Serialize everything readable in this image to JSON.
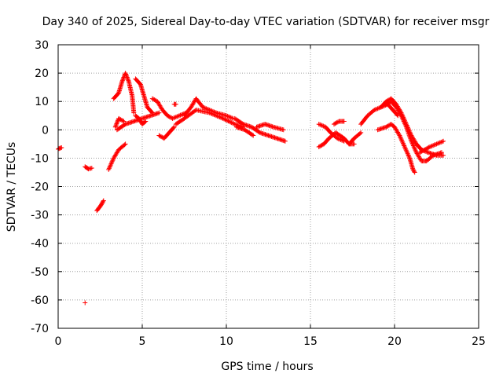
{
  "chart_data": {
    "type": "scatter",
    "title": "Day 340 of 2025, Sidereal Day-to-day VTEC variation (SDTVAR) for receiver msgr",
    "xlabel": "GPS time / hours",
    "ylabel": "SDTVAR / TECUs",
    "xlim": [
      0,
      25
    ],
    "ylim": [
      -70,
      30
    ],
    "xticks": [
      "0",
      "5",
      "10",
      "15",
      "20",
      "25"
    ],
    "yticks": [
      "30",
      "20",
      "10",
      "0",
      "-10",
      "-20",
      "-30",
      "-40",
      "-50",
      "-60",
      "-70"
    ],
    "grid": true,
    "marker": "+",
    "color": "#ff0000",
    "series": [
      {
        "name": "SDTVAR",
        "tracks": [
          [
            [
              0.0,
              -6.8
            ],
            [
              0.1,
              -6.5
            ],
            [
              0.2,
              -6.3
            ]
          ],
          [
            [
              1.6,
              -13
            ],
            [
              1.8,
              -13.8
            ],
            [
              2.0,
              -13.5
            ]
          ],
          [
            [
              1.6,
              -61
            ]
          ],
          [
            [
              2.3,
              -28.5
            ],
            [
              2.5,
              -27
            ],
            [
              2.7,
              -25
            ]
          ],
          [
            [
              3.0,
              -14
            ],
            [
              3.3,
              -10
            ],
            [
              3.6,
              -7
            ],
            [
              4.0,
              -5
            ]
          ],
          [
            [
              3.4,
              1
            ],
            [
              3.6,
              4
            ],
            [
              3.9,
              3
            ]
          ],
          [
            [
              3.3,
              11
            ],
            [
              3.6,
              13
            ],
            [
              3.8,
              17
            ],
            [
              4.0,
              20
            ],
            [
              4.2,
              17
            ],
            [
              4.4,
              12
            ],
            [
              4.5,
              6
            ]
          ],
          [
            [
              4.6,
              5
            ],
            [
              4.8,
              4
            ],
            [
              5.0,
              2
            ],
            [
              5.2,
              3
            ]
          ],
          [
            [
              4.6,
              18
            ],
            [
              4.9,
              16
            ],
            [
              5.1,
              12
            ],
            [
              5.3,
              8
            ],
            [
              5.6,
              6
            ]
          ],
          [
            [
              3.5,
              0
            ],
            [
              4.0,
              2
            ],
            [
              4.5,
              3
            ],
            [
              5.0,
              4
            ],
            [
              5.5,
              5
            ],
            [
              6.0,
              6
            ]
          ],
          [
            [
              5.6,
              11
            ],
            [
              5.9,
              10
            ],
            [
              6.2,
              7
            ],
            [
              6.5,
              5
            ],
            [
              6.8,
              4
            ],
            [
              7.2,
              5
            ],
            [
              7.6,
              6
            ]
          ],
          [
            [
              6.0,
              -2
            ],
            [
              6.3,
              -3
            ],
            [
              6.6,
              -1
            ],
            [
              6.9,
              1
            ]
          ],
          [
            [
              6.9,
              9
            ],
            [
              7.0,
              9
            ]
          ],
          [
            [
              7.5,
              5
            ],
            [
              7.9,
              8
            ],
            [
              8.2,
              11
            ],
            [
              8.6,
              8
            ],
            [
              9.0,
              7
            ],
            [
              9.4,
              6
            ],
            [
              10.0,
              5
            ],
            [
              10.4,
              4
            ]
          ],
          [
            [
              7.0,
              2
            ],
            [
              7.5,
              4
            ],
            [
              8.2,
              7
            ],
            [
              9.0,
              6
            ],
            [
              9.8,
              4
            ],
            [
              10.5,
              2
            ],
            [
              11.0,
              1
            ]
          ],
          [
            [
              10.5,
              4
            ],
            [
              11.0,
              2
            ],
            [
              11.5,
              1
            ],
            [
              12.0,
              -1
            ],
            [
              12.5,
              -2
            ],
            [
              13.0,
              -3
            ],
            [
              13.5,
              -4
            ]
          ],
          [
            [
              10.6,
              1
            ],
            [
              11.1,
              0
            ],
            [
              11.6,
              -2
            ]
          ],
          [
            [
              11.8,
              1
            ],
            [
              12.3,
              2
            ],
            [
              12.8,
              1
            ],
            [
              13.4,
              0
            ]
          ],
          [
            [
              15.5,
              -6
            ],
            [
              15.8,
              -5
            ],
            [
              16.1,
              -3
            ],
            [
              16.5,
              -1
            ],
            [
              17.0,
              -3
            ],
            [
              17.3,
              -5
            ],
            [
              17.6,
              -5
            ]
          ],
          [
            [
              15.5,
              2
            ],
            [
              15.9,
              1
            ],
            [
              16.2,
              -1
            ],
            [
              16.6,
              -3
            ],
            [
              17.0,
              -4
            ]
          ],
          [
            [
              16.4,
              2
            ],
            [
              16.7,
              3
            ],
            [
              17.0,
              3
            ]
          ],
          [
            [
              17.3,
              -5
            ],
            [
              17.6,
              -3
            ],
            [
              18.0,
              -1
            ]
          ],
          [
            [
              18.0,
              2
            ],
            [
              18.4,
              5
            ],
            [
              18.8,
              7
            ],
            [
              19.2,
              8
            ],
            [
              19.6,
              9
            ],
            [
              19.9,
              7
            ],
            [
              20.2,
              5
            ]
          ],
          [
            [
              19.0,
              0
            ],
            [
              19.5,
              1
            ],
            [
              19.8,
              2
            ],
            [
              20.0,
              1
            ],
            [
              20.3,
              -2
            ],
            [
              20.6,
              -6
            ],
            [
              20.9,
              -10
            ],
            [
              21.1,
              -14
            ],
            [
              21.2,
              -15
            ]
          ],
          [
            [
              19.2,
              8
            ],
            [
              19.5,
              10
            ],
            [
              19.8,
              11
            ],
            [
              20.1,
              9
            ],
            [
              20.4,
              6
            ],
            [
              20.7,
              2
            ],
            [
              21.0,
              -2
            ],
            [
              21.3,
              -5
            ],
            [
              21.6,
              -7
            ],
            [
              22.0,
              -8
            ],
            [
              22.5,
              -9
            ],
            [
              22.9,
              -9
            ]
          ],
          [
            [
              19.5,
              9
            ],
            [
              19.8,
              10
            ],
            [
              20.1,
              8
            ],
            [
              20.4,
              5
            ],
            [
              20.7,
              1
            ],
            [
              21.0,
              -4
            ],
            [
              21.3,
              -8
            ],
            [
              21.6,
              -11
            ],
            [
              21.9,
              -11
            ],
            [
              22.3,
              -9
            ],
            [
              22.8,
              -8
            ]
          ],
          [
            [
              21.5,
              -8
            ],
            [
              21.8,
              -7
            ],
            [
              22.1,
              -6
            ],
            [
              22.5,
              -5
            ],
            [
              22.9,
              -4
            ]
          ]
        ]
      }
    ]
  }
}
